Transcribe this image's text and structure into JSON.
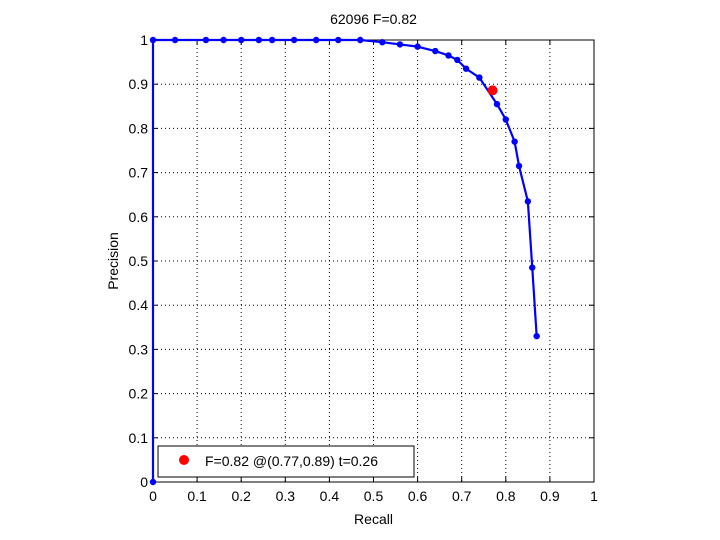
{
  "chart_data": {
    "type": "line",
    "title": "62096 F=0.82",
    "xlabel": "Recall",
    "ylabel": "Precision",
    "xlim": [
      0,
      1
    ],
    "ylim": [
      0,
      1
    ],
    "xticks": [
      "0",
      "0.1",
      "0.2",
      "0.3",
      "0.4",
      "0.5",
      "0.6",
      "0.7",
      "0.8",
      "0.9",
      "1"
    ],
    "yticks": [
      "0",
      "0.1",
      "0.2",
      "0.3",
      "0.4",
      "0.5",
      "0.6",
      "0.7",
      "0.8",
      "0.9",
      "1"
    ],
    "grid": true,
    "legend_position": "bottom-left",
    "series": [
      {
        "color": "#0000ff",
        "marker": "dot",
        "points": [
          [
            0.0,
            0.0
          ],
          [
            0.0,
            1.0
          ],
          [
            0.05,
            1.0
          ],
          [
            0.12,
            1.0
          ],
          [
            0.16,
            1.0
          ],
          [
            0.2,
            1.0
          ],
          [
            0.24,
            1.0
          ],
          [
            0.27,
            1.0
          ],
          [
            0.32,
            1.0
          ],
          [
            0.37,
            1.0
          ],
          [
            0.42,
            1.0
          ],
          [
            0.47,
            1.0
          ],
          [
            0.52,
            0.995
          ],
          [
            0.56,
            0.99
          ],
          [
            0.6,
            0.985
          ],
          [
            0.64,
            0.975
          ],
          [
            0.67,
            0.965
          ],
          [
            0.69,
            0.955
          ],
          [
            0.71,
            0.935
          ],
          [
            0.74,
            0.915
          ],
          [
            0.78,
            0.855
          ],
          [
            0.8,
            0.82
          ],
          [
            0.82,
            0.77
          ],
          [
            0.83,
            0.715
          ],
          [
            0.85,
            0.635
          ],
          [
            0.86,
            0.485
          ],
          [
            0.87,
            0.33
          ]
        ]
      }
    ],
    "best_point": {
      "x": 0.77,
      "y": 0.886,
      "color": "#ff0000",
      "legend_label": "F=0.82 @(0.77,0.89) t=0.26"
    }
  }
}
